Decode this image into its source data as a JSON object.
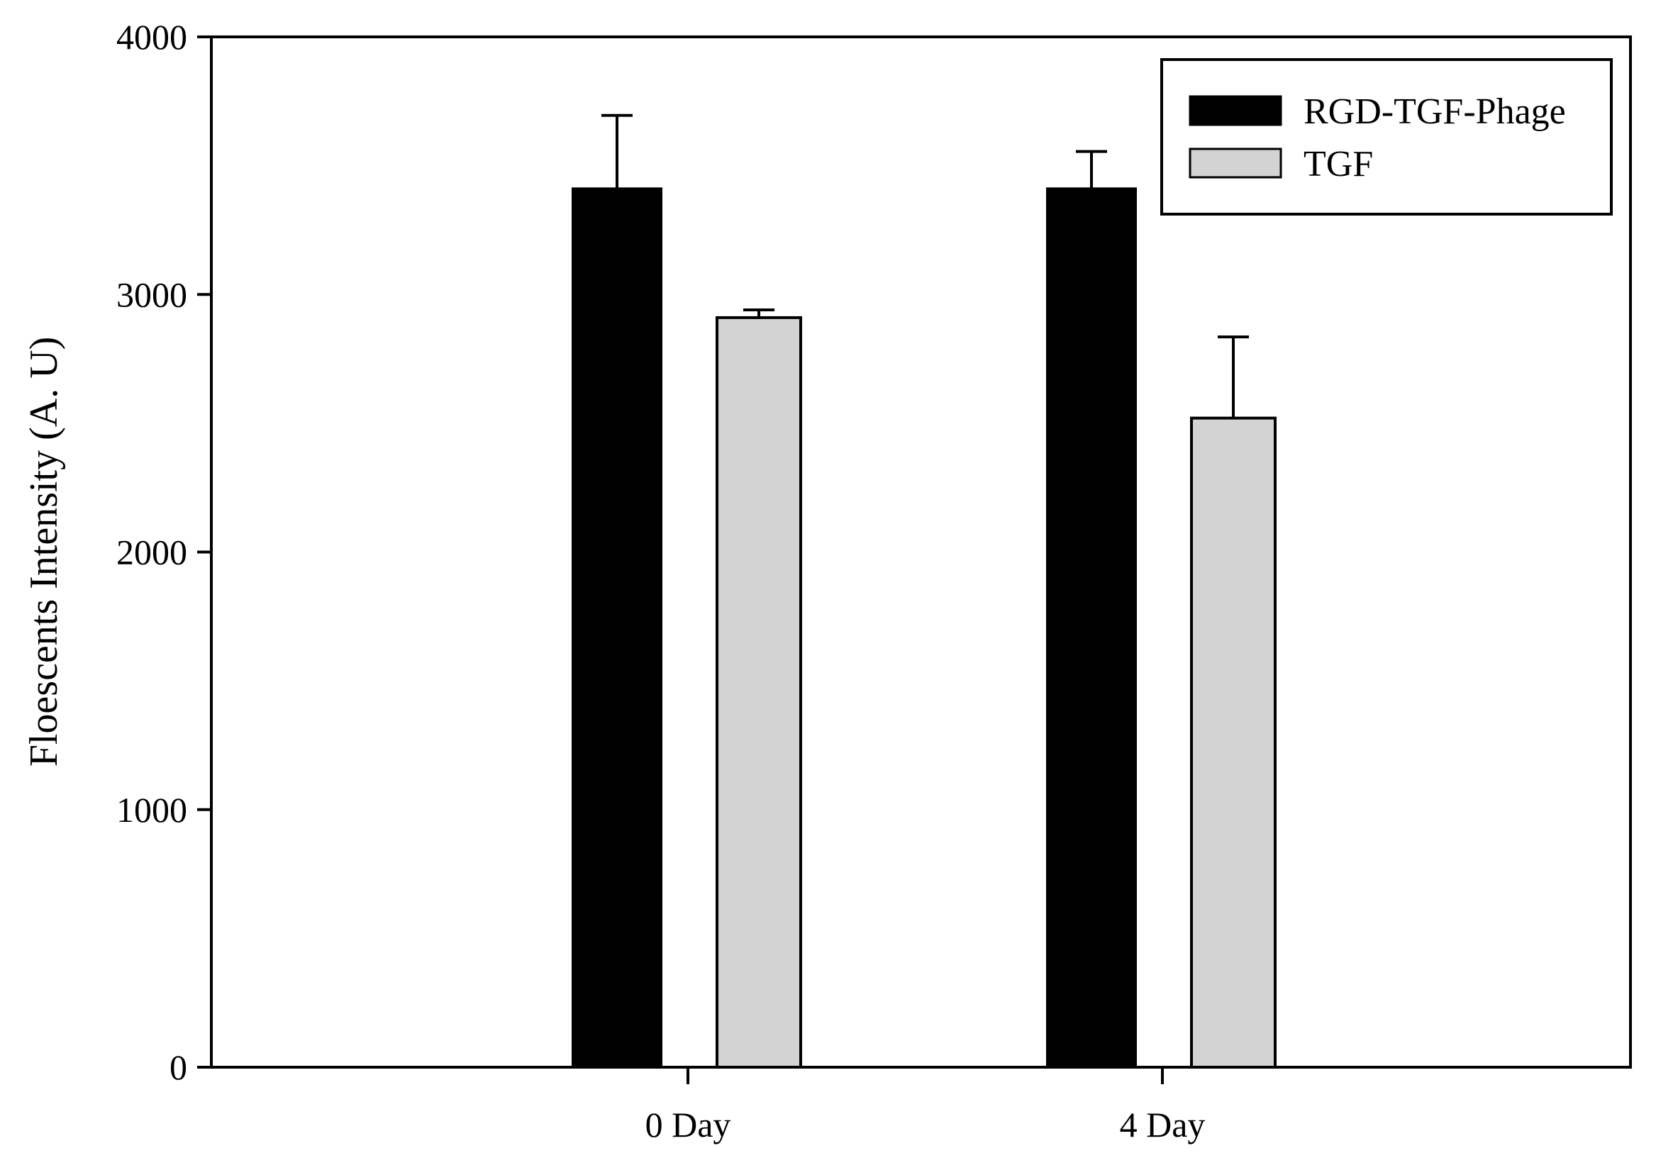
{
  "chart_data": {
    "type": "bar",
    "title": "",
    "xlabel": "",
    "ylabel": "Floescents Intensity (A. U)",
    "ylim": [
      0,
      4000
    ],
    "yticks": [
      "0",
      "1000",
      "2000",
      "3000",
      "4000"
    ],
    "categories": [
      "0 Day",
      "4 Day"
    ],
    "series": [
      {
        "name": "RGD-TGF-Phage",
        "color": "#000000",
        "values": [
          3410,
          3410
        ],
        "errors": [
          285,
          145
        ]
      },
      {
        "name": "TGF",
        "color": "#d3d3d3",
        "values": [
          2910,
          2520
        ],
        "errors": [
          30,
          315
        ]
      }
    ],
    "legend": {
      "placement": "top-right"
    },
    "grid": false
  }
}
